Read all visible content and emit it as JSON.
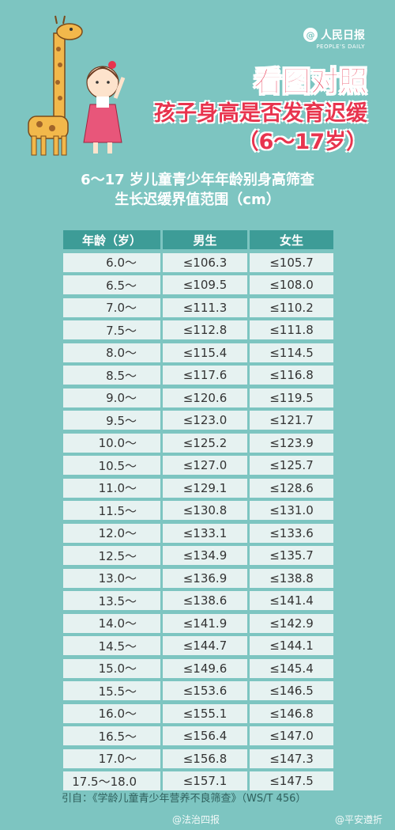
{
  "brand": {
    "name": "人民日报",
    "sub": "PEOPLE'S DAILY"
  },
  "headline": {
    "line1": "看图对照",
    "line2": "孩子身高是否发育迟缓",
    "line3": "（6～17岁）"
  },
  "subtitle": {
    "line1": "6～17 岁儿童青少年年龄别身高筛查",
    "line2": "生长迟缓界值范围（cm）"
  },
  "table": {
    "headers": [
      "年龄（岁）",
      "男生",
      "女生"
    ],
    "rows": [
      {
        "age": "6.0～",
        "boy": "≤106.3",
        "girl": "≤105.7"
      },
      {
        "age": "6.5～",
        "boy": "≤109.5",
        "girl": "≤108.0"
      },
      {
        "age": "7.0～",
        "boy": "≤111.3",
        "girl": "≤110.2"
      },
      {
        "age": "7.5～",
        "boy": "≤112.8",
        "girl": "≤111.8"
      },
      {
        "age": "8.0～",
        "boy": "≤115.4",
        "girl": "≤114.5"
      },
      {
        "age": "8.5～",
        "boy": "≤117.6",
        "girl": "≤116.8"
      },
      {
        "age": "9.0～",
        "boy": "≤120.6",
        "girl": "≤119.5"
      },
      {
        "age": "9.5～",
        "boy": "≤123.0",
        "girl": "≤121.7"
      },
      {
        "age": "10.0～",
        "boy": "≤125.2",
        "girl": "≤123.9"
      },
      {
        "age": "10.5～",
        "boy": "≤127.0",
        "girl": "≤125.7"
      },
      {
        "age": "11.0～",
        "boy": "≤129.1",
        "girl": "≤128.6"
      },
      {
        "age": "11.5～",
        "boy": "≤130.8",
        "girl": "≤131.0"
      },
      {
        "age": "12.0～",
        "boy": "≤133.1",
        "girl": "≤133.6"
      },
      {
        "age": "12.5～",
        "boy": "≤134.9",
        "girl": "≤135.7"
      },
      {
        "age": "13.0～",
        "boy": "≤136.9",
        "girl": "≤138.8"
      },
      {
        "age": "13.5～",
        "boy": "≤138.6",
        "girl": "≤141.4"
      },
      {
        "age": "14.0～",
        "boy": "≤141.9",
        "girl": "≤142.9"
      },
      {
        "age": "14.5～",
        "boy": "≤144.7",
        "girl": "≤144.1"
      },
      {
        "age": "15.0～",
        "boy": "≤149.6",
        "girl": "≤145.4"
      },
      {
        "age": "15.5～",
        "boy": "≤153.6",
        "girl": "≤146.5"
      },
      {
        "age": "16.0～",
        "boy": "≤155.1",
        "girl": "≤146.8"
      },
      {
        "age": "16.5～",
        "boy": "≤156.4",
        "girl": "≤147.0"
      },
      {
        "age": "17.0～",
        "boy": "≤156.8",
        "girl": "≤147.3"
      },
      {
        "age": "17.5～18.0",
        "boy": "≤157.1",
        "girl": "≤147.5"
      }
    ]
  },
  "source": "引自：《学龄儿童青少年营养不良筛查》（WS/T 456）",
  "watermarks": {
    "left": "@法治四报",
    "right": "@平安遵折"
  },
  "colors": {
    "background": "#7dc5c1",
    "header_cell": "#3d9c97",
    "cell": "#e6f2f1",
    "headline": "#e8344e"
  },
  "icons": {
    "illustration": "giraffe-and-girl-illustration",
    "logo": "people-daily-logo"
  }
}
